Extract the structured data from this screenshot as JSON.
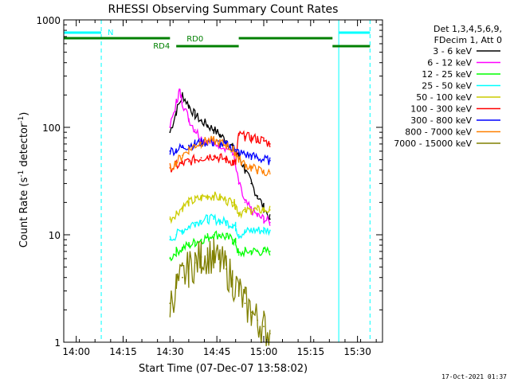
{
  "chart_data": {
    "type": "line",
    "title": "RHESSI Observing Summary Count Rates",
    "xlabel": "Start Time (07-Dec-07 13:58:02)",
    "ylabel": "Count Rate (s",
    "ylabel_sup1": "-1",
    "ylabel_mid": " detector",
    "ylabel_sup2": "-1",
    "ylabel_end": ")",
    "yscale": "log",
    "ylim": [
      1,
      1000
    ],
    "ytick_values": [
      1,
      10,
      100,
      1000
    ],
    "ytick_labels": [
      "1",
      "10",
      "100",
      "1000"
    ],
    "xlim": [
      "13:56",
      "15:38"
    ],
    "xtick_values": [
      "14:00",
      "14:15",
      "14:30",
      "14:45",
      "15:00",
      "15:15",
      "15:30"
    ],
    "xtick_labels": [
      "14:00",
      "14:15",
      "14:30",
      "14:45",
      "15:00",
      "15:15",
      "15:30"
    ],
    "legend": {
      "placement": "top-right",
      "header_line1": "Det 1,3,4,5,6,9,",
      "header_line2": "FDecim 1, Att 0"
    },
    "series": [
      {
        "name": "3 - 6 keV",
        "color": "#000000",
        "x": [
          "14:30",
          "14:32",
          "14:34",
          "14:36",
          "14:38",
          "14:40",
          "14:42",
          "14:44",
          "14:46",
          "14:48",
          "14:50",
          "14:52",
          "14:54",
          "14:56",
          "14:58",
          "15:00",
          "15:02"
        ],
        "y": [
          90,
          140,
          200,
          160,
          130,
          115,
          105,
          95,
          85,
          75,
          65,
          55,
          40,
          30,
          23,
          18,
          14
        ]
      },
      {
        "name": "6 - 12 keV",
        "color": "#ff00ff",
        "x": [
          "14:30",
          "14:32",
          "14:33",
          "14:34",
          "14:36",
          "14:38",
          "14:40",
          "14:42",
          "14:44",
          "14:46",
          "14:48",
          "14:50",
          "14:52",
          "14:54",
          "14:56",
          "14:58",
          "15:00",
          "15:02"
        ],
        "y": [
          100,
          170,
          220,
          170,
          120,
          95,
          80,
          75,
          70,
          70,
          65,
          60,
          30,
          20,
          17,
          15,
          14,
          13
        ]
      },
      {
        "name": "12 - 25 keV",
        "color": "#00ff00",
        "x": [
          "14:30",
          "14:32",
          "14:34",
          "14:36",
          "14:38",
          "14:40",
          "14:42",
          "14:44",
          "14:46",
          "14:48",
          "14:50",
          "14:51",
          "14:52",
          "14:54",
          "14:56",
          "14:58",
          "15:00",
          "15:02"
        ],
        "y": [
          6,
          7,
          7.5,
          8,
          8.5,
          9,
          9.5,
          10,
          10,
          9.5,
          9,
          8.5,
          6.5,
          7,
          7,
          7,
          7,
          7
        ]
      },
      {
        "name": "25 - 50 keV",
        "color": "#00ffff",
        "x": [
          "14:30",
          "14:32",
          "14:34",
          "14:36",
          "14:38",
          "14:40",
          "14:42",
          "14:44",
          "14:46",
          "14:48",
          "14:50",
          "14:51",
          "14:52",
          "14:54",
          "14:56",
          "14:58",
          "15:00",
          "15:02"
        ],
        "y": [
          9,
          10,
          11,
          12,
          13,
          13.5,
          14,
          14,
          13.5,
          13,
          12.5,
          12,
          10,
          10.5,
          11,
          11,
          11,
          11
        ]
      },
      {
        "name": "50 - 100 keV",
        "color": "#cccc00",
        "x": [
          "14:30",
          "14:32",
          "14:34",
          "14:36",
          "14:38",
          "14:40",
          "14:42",
          "14:44",
          "14:46",
          "14:48",
          "14:50",
          "14:51",
          "14:52",
          "14:54",
          "14:56",
          "14:58",
          "15:00",
          "15:02"
        ],
        "y": [
          14,
          16,
          18,
          20,
          21,
          22,
          23,
          23,
          22,
          21,
          20,
          19,
          16,
          16.5,
          17,
          17,
          17,
          17
        ]
      },
      {
        "name": "100 - 300 keV",
        "color": "#ff0000",
        "x": [
          "14:30",
          "14:32",
          "14:34",
          "14:36",
          "14:38",
          "14:40",
          "14:42",
          "14:44",
          "14:46",
          "14:48",
          "14:50",
          "14:51",
          "14:52",
          "14:54",
          "14:56",
          "14:58",
          "15:00",
          "15:02"
        ],
        "y": [
          42,
          44,
          46,
          48,
          50,
          52,
          54,
          54,
          52,
          50,
          48,
          46,
          85,
          82,
          80,
          78,
          75,
          70
        ]
      },
      {
        "name": "300 - 800 keV",
        "color": "#0000ff",
        "x": [
          "14:30",
          "14:32",
          "14:34",
          "14:36",
          "14:38",
          "14:40",
          "14:42",
          "14:44",
          "14:46",
          "14:48",
          "14:50",
          "14:51",
          "14:52",
          "14:54",
          "14:56",
          "14:58",
          "15:00",
          "15:02"
        ],
        "y": [
          60,
          62,
          65,
          68,
          70,
          72,
          73,
          72,
          70,
          68,
          65,
          62,
          58,
          56,
          54,
          52,
          50,
          49
        ]
      },
      {
        "name": "800 - 7000 keV",
        "color": "#ff8000",
        "x": [
          "14:30",
          "14:32",
          "14:34",
          "14:36",
          "14:38",
          "14:40",
          "14:42",
          "14:44",
          "14:46",
          "14:48",
          "14:50",
          "14:51",
          "14:52",
          "14:54",
          "14:56",
          "14:58",
          "15:00",
          "15:02"
        ],
        "y": [
          42,
          47,
          55,
          62,
          68,
          72,
          75,
          75,
          72,
          68,
          62,
          58,
          50,
          45,
          42,
          40,
          38,
          37
        ]
      },
      {
        "name": "7000 - 15000 keV",
        "color": "#808000",
        "x": [
          "14:30",
          "14:32",
          "14:34",
          "14:36",
          "14:38",
          "14:40",
          "14:42",
          "14:44",
          "14:46",
          "14:48",
          "14:50",
          "14:52",
          "14:54",
          "14:56",
          "14:58",
          "15:00",
          "15:02"
        ],
        "y": [
          2.3,
          3.2,
          4.0,
          4.8,
          5.5,
          6.2,
          6.5,
          6.2,
          5.5,
          4.8,
          3.8,
          3.0,
          2.3,
          1.9,
          1.6,
          1.4,
          1.2
        ]
      }
    ],
    "annotations": [
      {
        "text": "N",
        "color": "#00ffff"
      },
      {
        "text": "RD0",
        "color": "#008000"
      },
      {
        "text": "RD4",
        "color": "#008000"
      }
    ],
    "flag_bars": {
      "night": {
        "color": "#00ffff",
        "segments": [
          [
            "13:56",
            "14:08"
          ],
          [
            "15:24",
            "15:34"
          ]
        ]
      },
      "rd0": {
        "color": "#008000",
        "segments": [
          [
            "13:56",
            "14:30"
          ],
          [
            "14:52",
            "15:22"
          ]
        ]
      },
      "rd4": {
        "color": "#008000",
        "segments": [
          [
            "14:32",
            "14:52"
          ],
          [
            "15:22",
            "15:34"
          ]
        ]
      }
    },
    "vlines": [
      {
        "time": "13:56",
        "style": "solid",
        "color": "#00ffff"
      },
      {
        "time": "14:08",
        "style": "dashed",
        "color": "#00ffff"
      },
      {
        "time": "15:24",
        "style": "solid",
        "color": "#00ffff"
      },
      {
        "time": "15:34",
        "style": "dashed",
        "color": "#00ffff"
      }
    ],
    "timestamp": "17-Oct-2021 01:37"
  }
}
